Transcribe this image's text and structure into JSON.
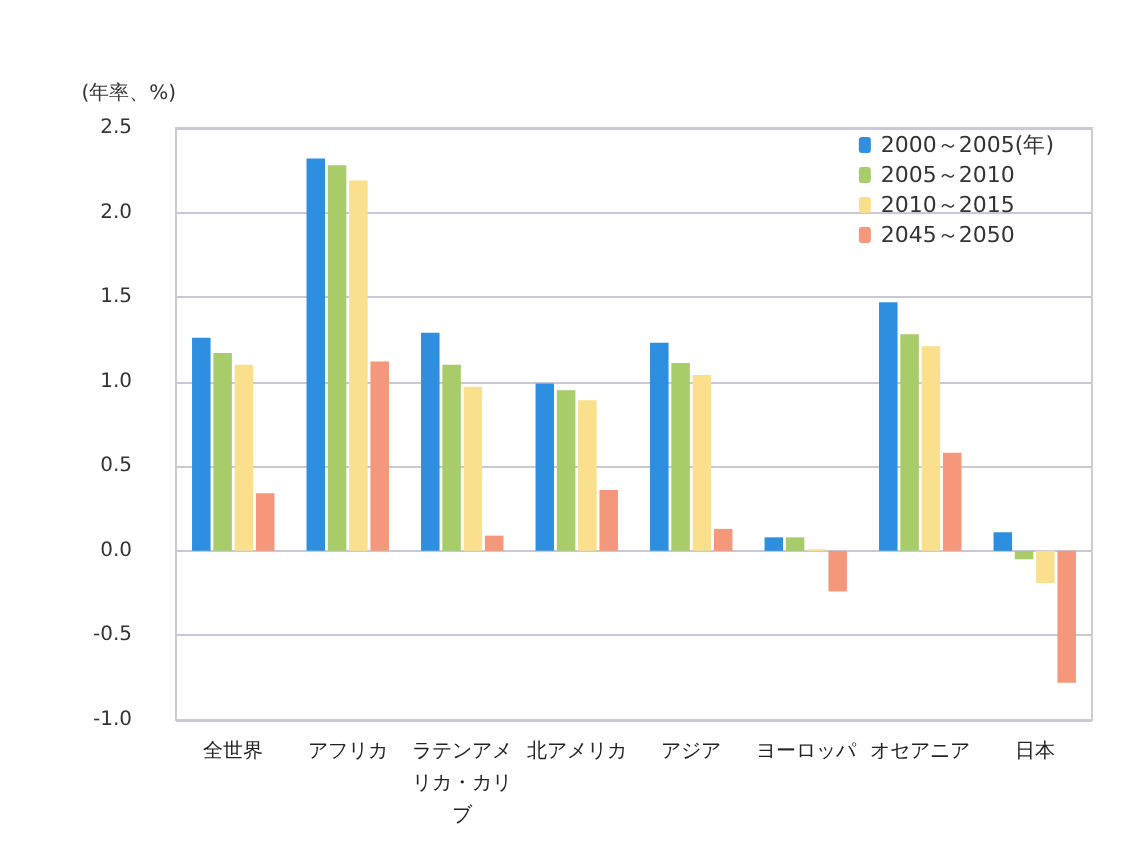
{
  "chart_data": {
    "type": "bar",
    "ylabel": "(年率、%)",
    "categories": [
      "全世界",
      "アフリカ",
      "ラテンアメリカ・カリブ",
      "北アメリカ",
      "アジア",
      "ヨーロッパ",
      "オセアニア",
      "日本"
    ],
    "series": [
      {
        "name": "2000～2005(年)",
        "color": "#2e8fe0",
        "values": [
          1.26,
          2.32,
          1.29,
          0.99,
          1.23,
          0.08,
          1.47,
          0.11
        ]
      },
      {
        "name": "2005～2010",
        "color": "#a8cc6a",
        "values": [
          1.17,
          2.28,
          1.1,
          0.95,
          1.11,
          0.08,
          1.28,
          -0.05
        ]
      },
      {
        "name": "2010～2015",
        "color": "#fae08c",
        "values": [
          1.1,
          2.19,
          0.97,
          0.89,
          1.04,
          0.01,
          1.21,
          -0.19
        ]
      },
      {
        "name": "2045～2050",
        "color": "#f5977a",
        "values": [
          0.34,
          1.12,
          0.09,
          0.36,
          0.13,
          -0.24,
          0.58,
          -0.78
        ]
      }
    ],
    "ylim": [
      -1.0,
      2.5
    ],
    "yticks": [
      {
        "value": -1,
        "label": "-1.0"
      },
      {
        "value": -0.5,
        "label": "-0.5"
      },
      {
        "value": 0,
        "label": "0.0"
      },
      {
        "value": 0.5,
        "label": "0.5"
      },
      {
        "value": 1,
        "label": "1.0"
      },
      {
        "value": 1.5,
        "label": "1.5"
      },
      {
        "value": 2,
        "label": "2.0"
      },
      {
        "value": 2.5,
        "label": "2.5"
      }
    ],
    "grid": "y",
    "legend": "top right"
  }
}
